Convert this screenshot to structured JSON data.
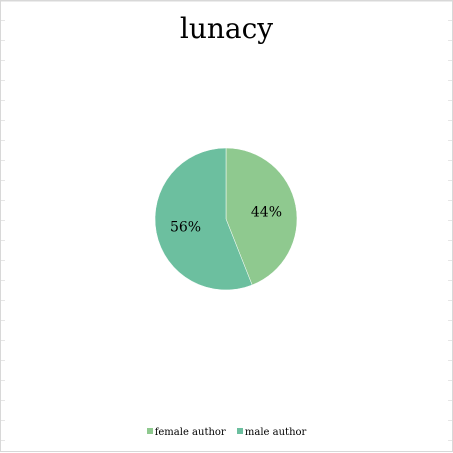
{
  "chart_data": {
    "type": "pie",
    "title": "lunacy",
    "legend_position": "bottom",
    "slices": [
      {
        "name": "female author",
        "value": 44,
        "label": "44%",
        "color": "#8fc98f"
      },
      {
        "name": "male author",
        "value": 56,
        "label": "56%",
        "color": "#6cbf9f"
      }
    ]
  }
}
